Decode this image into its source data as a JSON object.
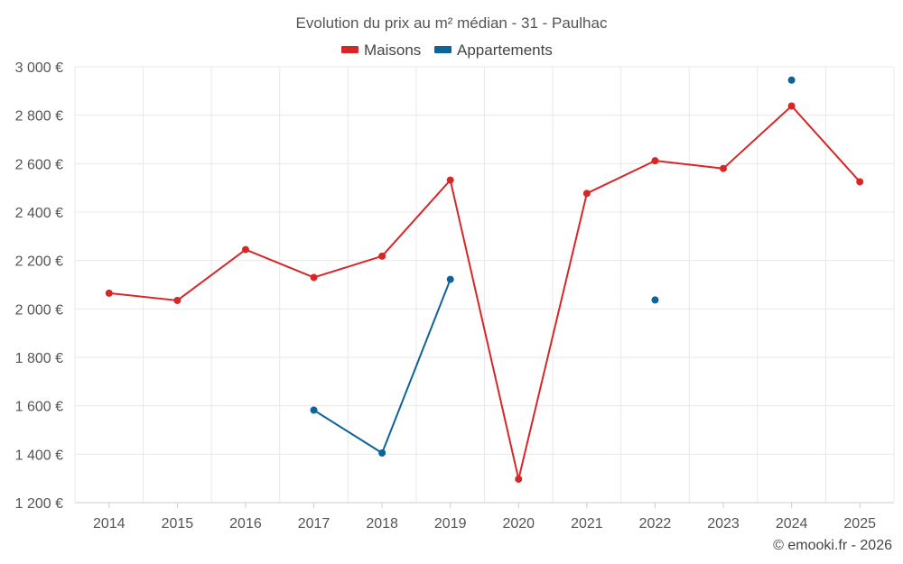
{
  "chart_data": {
    "type": "line",
    "title": "Evolution du prix au m² médian - 31 - Paulhac",
    "categories": [
      "2014",
      "2015",
      "2016",
      "2017",
      "2018",
      "2019",
      "2020",
      "2021",
      "2022",
      "2023",
      "2024",
      "2025"
    ],
    "series": [
      {
        "name": "Maisons",
        "color": "#d62728",
        "values": [
          2065,
          2035,
          2245,
          2130,
          2218,
          2532,
          1297,
          2477,
          2612,
          2580,
          2838,
          2525
        ]
      },
      {
        "name": "Appartements",
        "color": "#0e6399",
        "values": [
          null,
          null,
          null,
          1582,
          1405,
          2122,
          null,
          null,
          2037,
          null,
          2945,
          null
        ]
      }
    ],
    "ylim": [
      1200,
      3000
    ],
    "yticks": [
      1200,
      1400,
      1600,
      1800,
      2000,
      2200,
      2400,
      2600,
      2800,
      3000
    ],
    "ytick_labels": [
      "1 200 €",
      "1 400 €",
      "1 600 €",
      "1 800 €",
      "2 000 €",
      "2 200 €",
      "2 400 €",
      "2 600 €",
      "2 800 €",
      "3 000 €"
    ],
    "xlabel": "",
    "ylabel": "",
    "grid": true,
    "legend_position": "top-center"
  },
  "credit": "© emooki.fr - 2026"
}
